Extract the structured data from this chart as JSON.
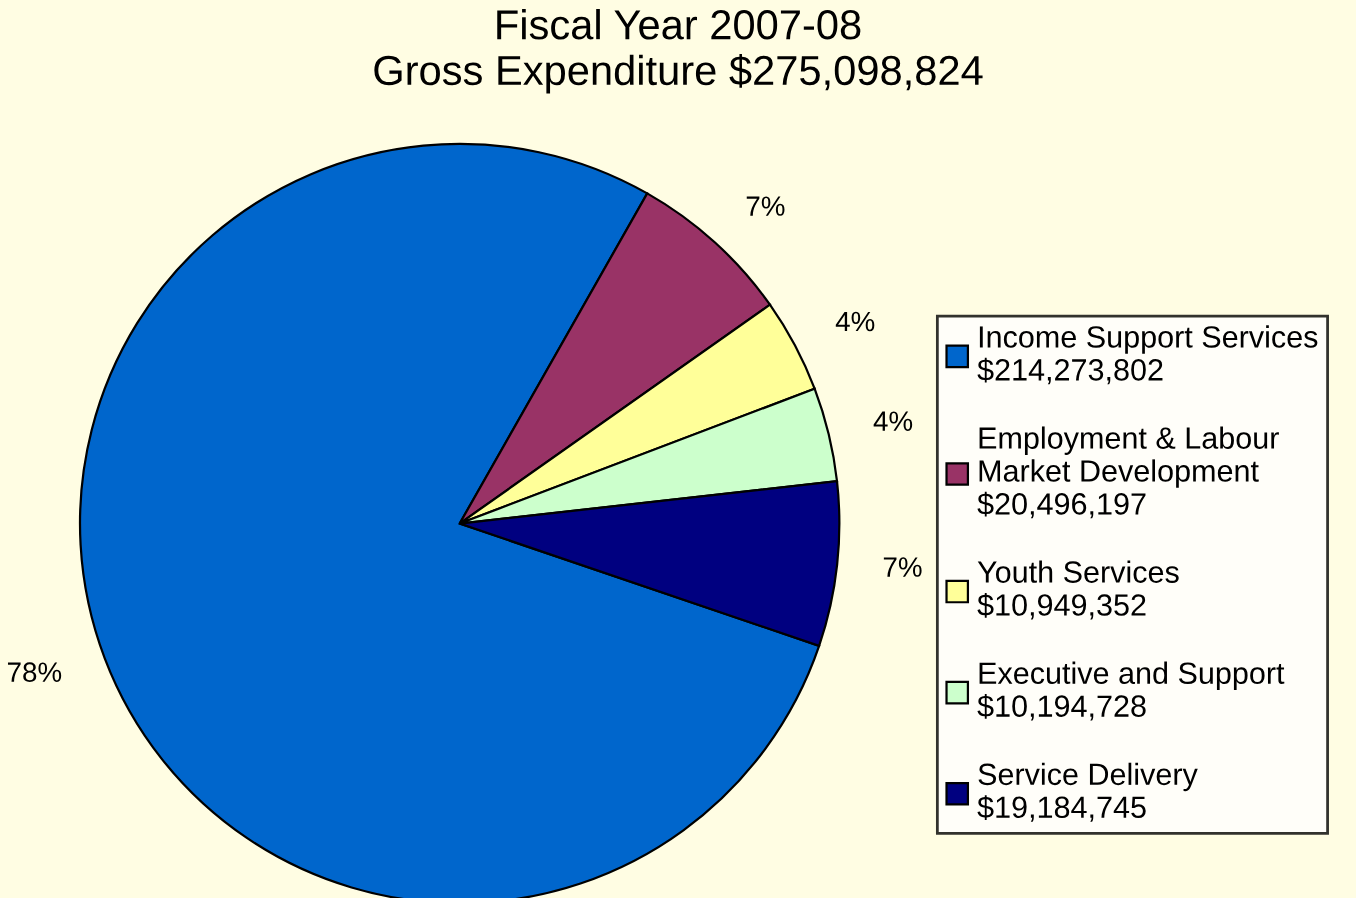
{
  "chart_data": {
    "type": "pie",
    "title": "Fiscal Year 2007-08\nGross Expenditure $275,098,824",
    "categories": [
      "Income Support Services\n$214,273,802",
      "Employment & Labour\nMarket Development\n$20,496,197",
      "Youth Services\n$10,949,352",
      "Executive and Support\n$10,194,728",
      "Service Delivery\n$19,184,745"
    ],
    "values": [
      78,
      7,
      4,
      4,
      7
    ],
    "colors": [
      "#0066cc",
      "#993366",
      "#ffff99",
      "#ccffcc",
      "#000080"
    ],
    "value_labels": [
      "78%",
      "7%",
      "4%",
      "4%",
      "7%"
    ],
    "legend": "right"
  }
}
